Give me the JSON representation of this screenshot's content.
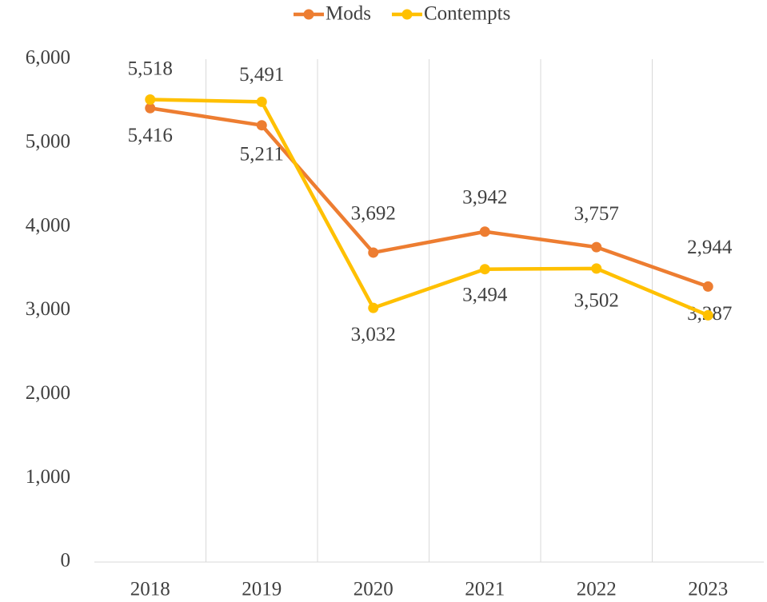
{
  "chart_data": {
    "type": "line",
    "categories": [
      "2018",
      "2019",
      "2020",
      "2021",
      "2022",
      "2023"
    ],
    "series": [
      {
        "name": "Mods",
        "color": "#ED7D31",
        "values": [
          5416,
          5211,
          3692,
          3942,
          3757,
          3287
        ],
        "value_labels": [
          "5,416",
          "5,211",
          "3,692",
          "3,942",
          "3,757",
          "3,287"
        ]
      },
      {
        "name": "Contempts",
        "color": "#FFC000",
        "values": [
          5518,
          5491,
          3032,
          3494,
          3502,
          2944
        ],
        "value_labels": [
          "5,518",
          "5,491",
          "3,032",
          "3,494",
          "3,502",
          "2,944"
        ]
      }
    ],
    "ylim": [
      0,
      6000
    ],
    "yticks": [
      {
        "value": 0,
        "label": "0"
      },
      {
        "value": 1000,
        "label": "1,000"
      },
      {
        "value": 2000,
        "label": "2,000"
      },
      {
        "value": 3000,
        "label": "3,000"
      },
      {
        "value": 4000,
        "label": "4,000"
      },
      {
        "value": 5000,
        "label": "5,000"
      },
      {
        "value": 6000,
        "label": "6,000"
      }
    ],
    "grid": "vertical",
    "legend": "top"
  }
}
